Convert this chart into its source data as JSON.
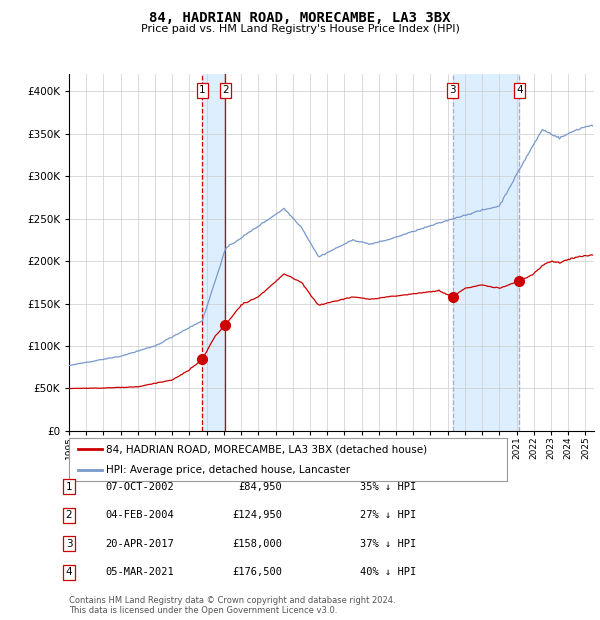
{
  "title": "84, HADRIAN ROAD, MORECAMBE, LA3 3BX",
  "subtitle": "Price paid vs. HM Land Registry's House Price Index (HPI)",
  "footer": "Contains HM Land Registry data © Crown copyright and database right 2024.\nThis data is licensed under the Open Government Licence v3.0.",
  "legend_label_red": "84, HADRIAN ROAD, MORECAMBE, LA3 3BX (detached house)",
  "legend_label_blue": "HPI: Average price, detached house, Lancaster",
  "transactions": [
    {
      "num": 1,
      "date": "07-OCT-2002",
      "price": 84950,
      "pct": "35% ↓ HPI",
      "year": 2002.75
    },
    {
      "num": 2,
      "date": "04-FEB-2004",
      "price": 124950,
      "pct": "27% ↓ HPI",
      "year": 2004.08
    },
    {
      "num": 3,
      "date": "20-APR-2017",
      "price": 158000,
      "pct": "37% ↓ HPI",
      "year": 2017.29
    },
    {
      "num": 4,
      "date": "05-MAR-2021",
      "price": 176500,
      "pct": "40% ↓ HPI",
      "year": 2021.17
    }
  ],
  "hpi_color": "#7799cc",
  "price_color": "#cc0000",
  "dot_color": "#cc0000",
  "shade_color": "#ddeeff",
  "grid_color": "#cccccc",
  "background_color": "#ffffff",
  "ylim": [
    0,
    420000
  ],
  "yticks": [
    0,
    50000,
    100000,
    150000,
    200000,
    250000,
    300000,
    350000,
    400000
  ],
  "xlim_start": 1995.0,
  "xlim_end": 2025.5,
  "xticks": [
    1995,
    1996,
    1997,
    1998,
    1999,
    2000,
    2001,
    2002,
    2003,
    2004,
    2005,
    2006,
    2007,
    2008,
    2009,
    2010,
    2011,
    2012,
    2013,
    2014,
    2015,
    2016,
    2017,
    2018,
    2019,
    2020,
    2021,
    2022,
    2023,
    2024,
    2025
  ]
}
